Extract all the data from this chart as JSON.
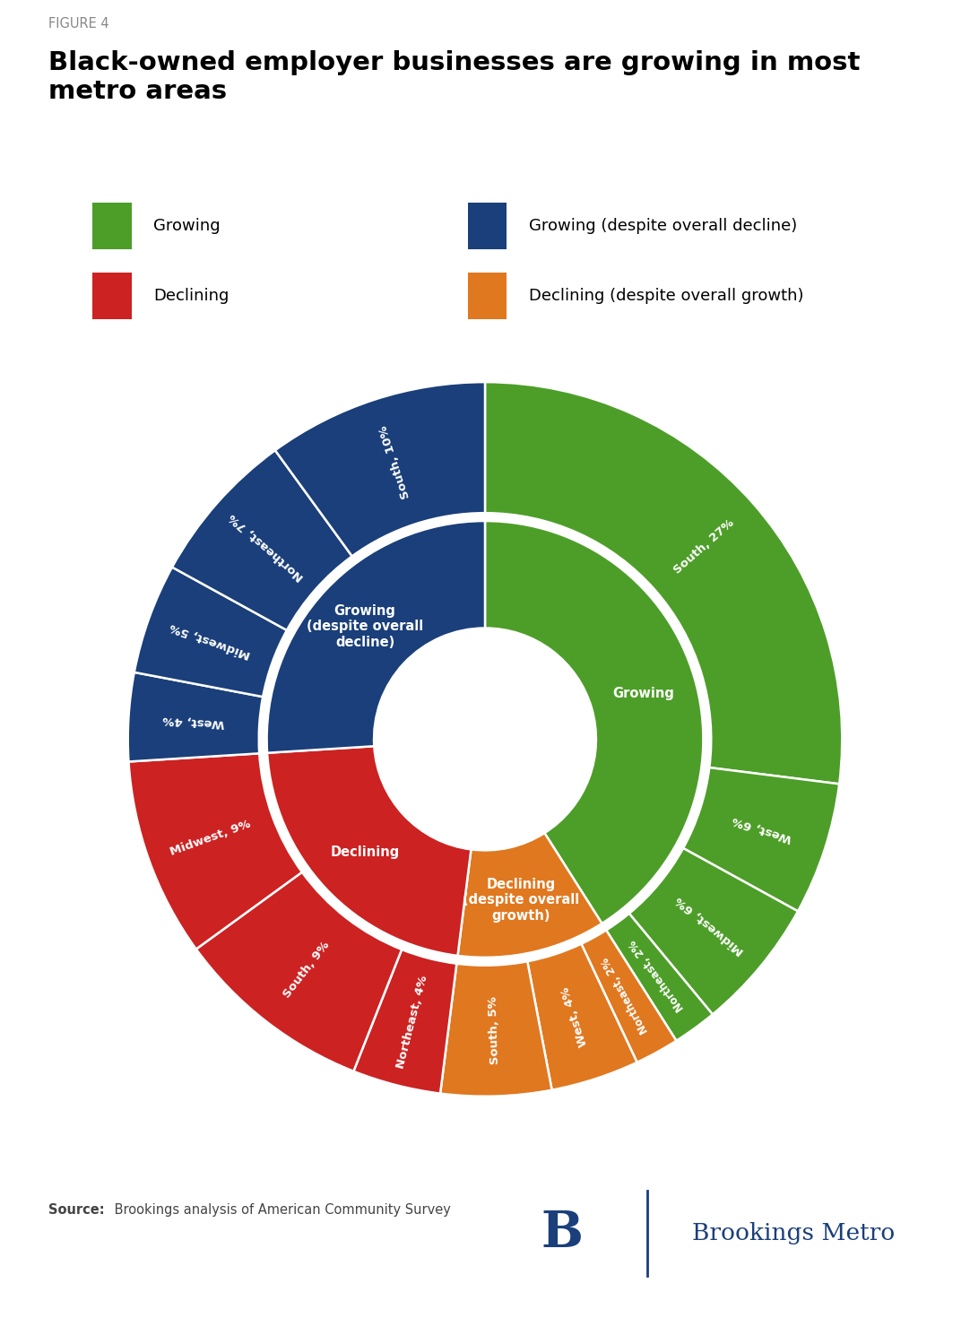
{
  "title_label": "FIGURE 4",
  "title": "Black-owned employer businesses are growing in most\nmetro areas",
  "source_bold": "Source:",
  "source_rest": " Brookings analysis of American Community Survey",
  "colors": {
    "growing": "#4d9e28",
    "declining": "#cc2222",
    "growing_despite": "#1a3f7a",
    "declining_despite": "#e07820"
  },
  "inner_ring": [
    {
      "label": "Growing",
      "value": 41,
      "color": "#4d9e28"
    },
    {
      "label": "Declining\n(despite overall\ngrowth)",
      "value": 11,
      "color": "#e07820"
    },
    {
      "label": "Declining",
      "value": 22,
      "color": "#cc2222"
    },
    {
      "label": "Growing\n(despite overall\ndecline)",
      "value": 26,
      "color": "#1a3f7a"
    }
  ],
  "outer_ring": [
    {
      "label": "South, 27%",
      "value": 27,
      "color": "#4d9e28"
    },
    {
      "label": "West, 6%",
      "value": 6,
      "color": "#4d9e28"
    },
    {
      "label": "Midwest, 6%",
      "value": 6,
      "color": "#4d9e28"
    },
    {
      "label": "Northeast, 2%",
      "value": 2,
      "color": "#4d9e28"
    },
    {
      "label": "Northeast, 2%",
      "value": 2,
      "color": "#e07820"
    },
    {
      "label": "West, 4%",
      "value": 4,
      "color": "#e07820"
    },
    {
      "label": "South, 5%",
      "value": 5,
      "color": "#e07820"
    },
    {
      "label": "Northeast, 4%",
      "value": 4,
      "color": "#cc2222"
    },
    {
      "label": "South, 9%",
      "value": 9,
      "color": "#cc2222"
    },
    {
      "label": "Midwest, 9%",
      "value": 9,
      "color": "#cc2222"
    },
    {
      "label": "West, 4%",
      "value": 4,
      "color": "#1a3f7a"
    },
    {
      "label": "Midwest, 5%",
      "value": 5,
      "color": "#1a3f7a"
    },
    {
      "label": "Northeast, 7%",
      "value": 7,
      "color": "#1a3f7a"
    },
    {
      "label": "South, 10%",
      "value": 10,
      "color": "#1a3f7a"
    }
  ],
  "legend_items": [
    {
      "label": "Growing",
      "color": "#4d9e28"
    },
    {
      "label": "Growing (despite overall decline)",
      "color": "#1a3f7a"
    },
    {
      "label": "Declining",
      "color": "#cc2222"
    },
    {
      "label": "Declining (despite overall growth)",
      "color": "#e07820"
    }
  ]
}
